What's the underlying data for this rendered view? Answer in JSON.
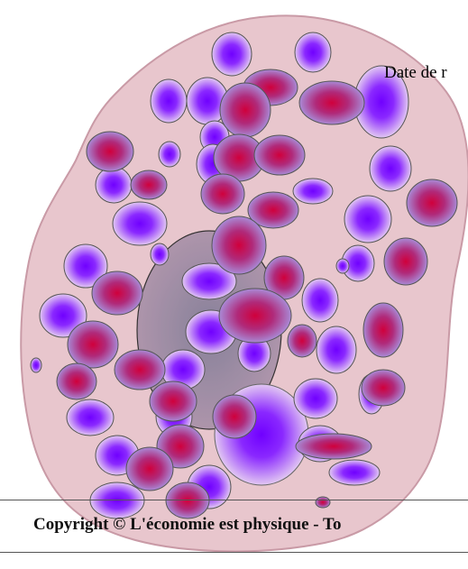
{
  "header": {
    "date_label": "Date de r"
  },
  "illustration": {
    "kind": "cell-like blob with purple and red cells",
    "colors": {
      "cytoplasm": "#e8c6cd",
      "outline": "#c89aa6",
      "blue_cell": "#7a00ff",
      "red_cell": "#cc0044",
      "nucleus": "#8a7f95"
    }
  },
  "footer": {
    "copyright": "Copyright © L'économie est physique - To"
  }
}
